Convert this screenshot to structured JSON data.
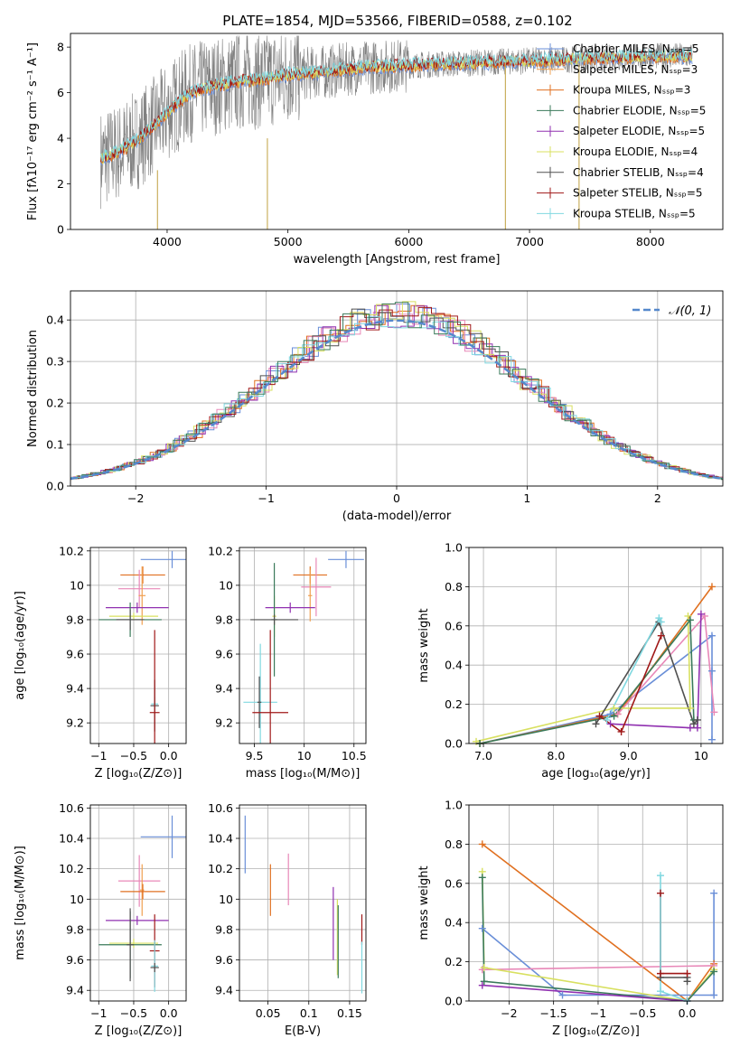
{
  "figure_title": "PLATE=1854, MJD=53566, FIBERID=0588, z=0.102",
  "colors": {
    "Chabrier MILES": "#6a8fd8",
    "Salpeter MILES": "#f0a050",
    "Kroupa MILES": "#e07020",
    "Chabrier ELODIE": "#3a7a5a",
    "Salpeter ELODIE": "#9030b0",
    "Kroupa ELODIE": "#d8e060",
    "Chabrier STELIB": "#505050",
    "Salpeter STELIB": "#a01818",
    "Kroupa STELIB": "#80d8e0",
    "pink": "#e888b8",
    "data": "#808080",
    "normal": "#5588cc"
  },
  "chart_data": [
    {
      "type": "line",
      "id": "spectrum",
      "xlabel": "wavelength [Angstrom, rest frame]",
      "ylabel": "Flux [fλ10⁻¹⁷ erg cm⁻² s⁻¹ A⁻¹]",
      "xlim": [
        3200,
        8600
      ],
      "ylim": [
        0,
        8.6
      ],
      "xticks": [
        4000,
        5000,
        6000,
        7000,
        8000
      ],
      "yticks": [
        0,
        2,
        4,
        6,
        8
      ],
      "legend_position": "upper-right",
      "legend": [
        {
          "label": "Chabrier MILES, Nₛₛₚ=5",
          "color": "Chabrier MILES"
        },
        {
          "label": "Salpeter MILES, Nₛₛₚ=3",
          "color": "Salpeter MILES"
        },
        {
          "label": "Kroupa MILES, Nₛₛₚ=3",
          "color": "Kroupa MILES"
        },
        {
          "label": "Chabrier ELODIE, Nₛₛₚ=5",
          "color": "Chabrier ELODIE"
        },
        {
          "label": "Salpeter ELODIE, Nₛₛₚ=5",
          "color": "Salpeter ELODIE"
        },
        {
          "label": "Kroupa ELODIE, Nₛₛₚ=4",
          "color": "Kroupa ELODIE"
        },
        {
          "label": "Chabrier STELIB, Nₛₛₚ=4",
          "color": "Chabrier STELIB"
        },
        {
          "label": "Salpeter STELIB, Nₛₛₚ=5",
          "color": "Salpeter STELIB"
        },
        {
          "label": "Kroupa STELIB, Nₛₛₚ=5",
          "color": "Kroupa STELIB"
        }
      ],
      "continuum_x": [
        3450,
        3600,
        3750,
        3900,
        4050,
        4200,
        4400,
        4600,
        4800,
        5000,
        5300,
        5600,
        6000,
        6500,
        7000,
        7500,
        8000,
        8350
      ],
      "continuum_y": [
        3.1,
        3.4,
        3.9,
        4.6,
        5.4,
        6.0,
        6.3,
        6.5,
        6.6,
        6.8,
        6.9,
        7.1,
        7.2,
        7.3,
        7.4,
        7.5,
        7.6,
        7.6
      ],
      "spikes": [
        {
          "x": 3920,
          "y0": 0,
          "y1": 2.6
        },
        {
          "x": 4830,
          "y0": 0,
          "y1": 4.0
        },
        {
          "x": 6800,
          "y0": 0,
          "y1": 7.2
        },
        {
          "x": 7410,
          "y0": 0,
          "y1": 7.3
        }
      ]
    },
    {
      "type": "step",
      "id": "residuals",
      "xlabel": "(data-model)/error",
      "ylabel": "Normed distribution",
      "xlim": [
        -2.5,
        2.5
      ],
      "ylim": [
        0,
        0.47
      ],
      "xticks": [
        -2,
        -1,
        0,
        1,
        2
      ],
      "yticks": [
        0.0,
        0.1,
        0.2,
        0.3,
        0.4
      ],
      "grid": true,
      "normal_label": "𝒩(0, 1)",
      "legend_position": "upper-right"
    },
    {
      "type": "errorbar",
      "id": "age_vs_Z",
      "xlabel": "Z [log₁₀(Z/Z⊙)]",
      "ylabel": "age  [log₁₀(age/yr)]",
      "xlim": [
        -1.12,
        0.25
      ],
      "ylim": [
        9.08,
        10.22
      ],
      "xticks": [
        -1.0,
        -0.5,
        0.0
      ],
      "yticks": [
        9.2,
        9.4,
        9.6,
        9.8,
        10.0,
        10.2
      ],
      "grid": true,
      "points": [
        {
          "c": "Chabrier MILES",
          "x": 0.05,
          "y": 10.15,
          "xe": 0.45,
          "ye": 0.05
        },
        {
          "c": "Kroupa MILES",
          "x": -0.37,
          "y": 10.06,
          "xe": 0.32,
          "ye": 0.05
        },
        {
          "c": "pink",
          "x": -0.42,
          "y": 9.98,
          "xe": 0.3,
          "ye": 0.11
        },
        {
          "c": "Salpeter MILES",
          "x": -0.38,
          "y": 9.94,
          "xe": 0.05,
          "ye": 0.17
        },
        {
          "c": "Salpeter ELODIE",
          "x": -0.45,
          "y": 9.87,
          "xe": 0.45,
          "ye": 0.03
        },
        {
          "c": "Kroupa ELODIE",
          "x": -0.5,
          "y": 9.82,
          "xe": 0.35,
          "ye": 0.02
        },
        {
          "c": "Chabrier ELODIE",
          "x": -0.55,
          "y": 9.8,
          "xe": 0.45,
          "ye": 0.1
        },
        {
          "c": "Chabrier STELIB",
          "x": -0.55,
          "y": 9.8,
          "xe": 0.2,
          "ye": 0.06
        },
        {
          "c": "Kroupa STELIB",
          "x": -0.2,
          "y": 9.31,
          "xe": 0.05,
          "ye": 0.04
        },
        {
          "c": "Chabrier STELIB",
          "x": -0.2,
          "y": 9.3,
          "xe": 0.06,
          "ye": 0.15
        },
        {
          "c": "Salpeter STELIB",
          "x": -0.2,
          "y": 9.26,
          "xe": 0.07,
          "ye": 0.48
        }
      ]
    },
    {
      "type": "errorbar",
      "id": "age_vs_mass",
      "xlabel": "mass [log₁₀(M/M⊙)]",
      "ylabel": "",
      "xlim": [
        9.35,
        10.62
      ],
      "ylim": [
        9.08,
        10.22
      ],
      "xticks": [
        9.5,
        10.0,
        10.5
      ],
      "yticks": [
        9.2,
        9.4,
        9.6,
        9.8,
        10.0,
        10.2
      ],
      "grid": true,
      "points": [
        {
          "c": "Chabrier MILES",
          "x": 10.42,
          "y": 10.15,
          "xe": 0.18,
          "ye": 0.05
        },
        {
          "c": "Kroupa MILES",
          "x": 10.06,
          "y": 10.06,
          "xe": 0.17,
          "ye": 0.05
        },
        {
          "c": "pink",
          "x": 10.12,
          "y": 9.99,
          "xe": 0.15,
          "ye": 0.17
        },
        {
          "c": "Salpeter MILES",
          "x": 10.06,
          "y": 9.94,
          "xe": 0.02,
          "ye": 0.15
        },
        {
          "c": "Salpeter ELODIE",
          "x": 9.86,
          "y": 9.87,
          "xe": 0.25,
          "ye": 0.03
        },
        {
          "c": "Kroupa ELODIE",
          "x": 9.7,
          "y": 9.82,
          "xe": 0.02,
          "ye": 0.12
        },
        {
          "c": "Chabrier ELODIE",
          "x": 9.7,
          "y": 9.8,
          "xe": 0.03,
          "ye": 0.33
        },
        {
          "c": "Chabrier STELIB",
          "x": 9.7,
          "y": 9.8,
          "xe": 0.24,
          "ye": 0.03
        },
        {
          "c": "Kroupa STELIB",
          "x": 9.56,
          "y": 9.32,
          "xe": 0.17,
          "ye": 0.34
        },
        {
          "c": "Chabrier STELIB",
          "x": 9.55,
          "y": 9.32,
          "xe": 0.02,
          "ye": 0.15
        },
        {
          "c": "Salpeter STELIB",
          "x": 9.66,
          "y": 9.26,
          "xe": 0.18,
          "ye": 0.48
        }
      ]
    },
    {
      "type": "line",
      "id": "weight_vs_age",
      "xlabel": "age  [log₁₀(age/yr)]",
      "ylabel": "mass weight",
      "xlim": [
        6.8,
        10.3
      ],
      "ylim": [
        0,
        1.0
      ],
      "xticks": [
        7,
        8,
        9,
        10
      ],
      "yticks": [
        0.0,
        0.2,
        0.4,
        0.6,
        0.8,
        1.0
      ],
      "grid": true,
      "series": [
        {
          "c": "Chabrier MILES",
          "x": [
            6.95,
            8.75,
            10.15,
            10.15,
            10.15
          ],
          "y": [
            0.0,
            0.15,
            0.55,
            0.37,
            0.02
          ]
        },
        {
          "c": "Kroupa MILES",
          "x": [
            6.95,
            8.85,
            10.15
          ],
          "y": [
            0.0,
            0.15,
            0.8
          ]
        },
        {
          "c": "pink",
          "x": [
            8.85,
            10.05,
            10.18
          ],
          "y": [
            0.15,
            0.65,
            0.16
          ]
        },
        {
          "c": "Kroupa ELODIE",
          "x": [
            6.9,
            8.8,
            9.85,
            9.82
          ],
          "y": [
            0.01,
            0.18,
            0.18,
            0.65
          ]
        },
        {
          "c": "Chabrier ELODIE",
          "x": [
            6.95,
            8.8,
            9.85,
            9.9
          ],
          "y": [
            0.0,
            0.14,
            0.63,
            0.12
          ]
        },
        {
          "c": "Salpeter ELODIE",
          "x": [
            8.75,
            9.85,
            9.95,
            10.0
          ],
          "y": [
            0.1,
            0.08,
            0.08,
            0.66
          ]
        },
        {
          "c": "Chabrier STELIB",
          "x": [
            8.55,
            9.42,
            9.9,
            9.95
          ],
          "y": [
            0.1,
            0.62,
            0.1,
            0.12
          ]
        },
        {
          "c": "Salpeter STELIB",
          "x": [
            8.6,
            8.9,
            9.45
          ],
          "y": [
            0.14,
            0.06,
            0.55
          ]
        },
        {
          "c": "Kroupa STELIB",
          "x": [
            8.7,
            9.42,
            9.45
          ],
          "y": [
            0.12,
            0.64,
            0.62
          ]
        }
      ]
    },
    {
      "type": "errorbar",
      "id": "mass_vs_Z",
      "xlabel": "Z [log₁₀(Z/Z⊙)]",
      "ylabel": "mass [log₁₀(M/M⊙)]",
      "xlim": [
        -1.12,
        0.25
      ],
      "ylim": [
        9.33,
        10.62
      ],
      "xticks": [
        -1.0,
        -0.5,
        0.0
      ],
      "yticks": [
        9.4,
        9.6,
        9.8,
        10.0,
        10.2,
        10.4,
        10.6
      ],
      "grid": true,
      "points": [
        {
          "c": "Chabrier MILES",
          "x": 0.05,
          "y": 10.41,
          "xe": 0.45,
          "ye": 0.14
        },
        {
          "c": "pink",
          "x": -0.42,
          "y": 10.12,
          "xe": 0.3,
          "ye": 0.17
        },
        {
          "c": "Salpeter MILES",
          "x": -0.38,
          "y": 10.06,
          "xe": 0.03,
          "ye": 0.17
        },
        {
          "c": "Kroupa MILES",
          "x": -0.37,
          "y": 10.05,
          "xe": 0.32,
          "ye": 0.05
        },
        {
          "c": "Salpeter ELODIE",
          "x": -0.45,
          "y": 9.86,
          "xe": 0.45,
          "ye": 0.03
        },
        {
          "c": "Kroupa ELODIE",
          "x": -0.5,
          "y": 9.71,
          "xe": 0.35,
          "ye": 0.03
        },
        {
          "c": "Chabrier ELODIE",
          "x": -0.55,
          "y": 9.7,
          "xe": 0.45,
          "ye": 0.22
        },
        {
          "c": "Chabrier STELIB",
          "x": -0.55,
          "y": 9.7,
          "xe": 0.05,
          "ye": 0.24
        },
        {
          "c": "Salpeter STELIB",
          "x": -0.2,
          "y": 9.66,
          "xe": 0.07,
          "ye": 0.24
        },
        {
          "c": "Kroupa STELIB",
          "x": -0.2,
          "y": 9.56,
          "xe": 0.05,
          "ye": 0.17
        },
        {
          "c": "Chabrier STELIB",
          "x": -0.2,
          "y": 9.55,
          "xe": 0.06,
          "ye": 0.03
        }
      ]
    },
    {
      "type": "errorbar",
      "id": "mass_vs_EBV",
      "xlabel": "E(B-V)",
      "ylabel": "",
      "xlim": [
        0.015,
        0.17
      ],
      "ylim": [
        9.33,
        10.62
      ],
      "xticks": [
        0.05,
        0.1,
        0.15
      ],
      "yticks": [
        9.4,
        9.6,
        9.8,
        10.0,
        10.2,
        10.4,
        10.6
      ],
      "grid": true,
      "points": [
        {
          "c": "Chabrier MILES",
          "x": 0.022,
          "y": 10.36,
          "xe": 0,
          "ye": 0.19
        },
        {
          "c": "Kroupa MILES",
          "x": 0.053,
          "y": 10.06,
          "xe": 0,
          "ye": 0.17
        },
        {
          "c": "pink",
          "x": 0.075,
          "y": 10.13,
          "xe": 0,
          "ye": 0.17
        },
        {
          "c": "Salpeter ELODIE",
          "x": 0.13,
          "y": 9.84,
          "xe": 0,
          "ye": 0.24
        },
        {
          "c": "Kroupa ELODIE",
          "x": 0.135,
          "y": 9.75,
          "xe": 0,
          "ye": 0.25
        },
        {
          "c": "Chabrier ELODIE",
          "x": 0.136,
          "y": 9.72,
          "xe": 0,
          "ye": 0.24
        },
        {
          "c": "Salpeter STELIB",
          "x": 0.165,
          "y": 9.8,
          "xe": 0,
          "ye": 0.1
        },
        {
          "c": "Kroupa STELIB",
          "x": 0.165,
          "y": 9.55,
          "xe": 0,
          "ye": 0.17
        }
      ]
    },
    {
      "type": "line",
      "id": "weight_vs_Z",
      "xlabel": "Z [log₁₀(Z/Z⊙)]",
      "ylabel": "mass weight",
      "xlim": [
        -2.45,
        0.4
      ],
      "ylim": [
        0,
        1.0
      ],
      "xticks": [
        -2.0,
        -1.5,
        -1.0,
        -0.5,
        0.0
      ],
      "yticks": [
        0.0,
        0.2,
        0.4,
        0.6,
        0.8,
        1.0
      ],
      "grid": true,
      "series": [
        {
          "c": "Kroupa MILES",
          "x": [
            -2.3,
            0.0,
            0.3
          ],
          "y": [
            0.8,
            0.0,
            0.19
          ]
        },
        {
          "c": "Chabrier MILES",
          "x": [
            -2.3,
            -1.4,
            0.3,
            0.3
          ],
          "y": [
            0.37,
            0.03,
            0.03,
            0.55
          ]
        },
        {
          "c": "pink",
          "x": [
            -2.3,
            0.3
          ],
          "y": [
            0.16,
            0.18
          ]
        },
        {
          "c": "Kroupa ELODIE",
          "x": [
            -2.3,
            -2.28,
            0.0,
            0.3
          ],
          "y": [
            0.66,
            0.17,
            0.0,
            0.16
          ]
        },
        {
          "c": "Chabrier ELODIE",
          "x": [
            -2.3,
            -2.28,
            0.0,
            0.3
          ],
          "y": [
            0.63,
            0.1,
            0.0,
            0.15
          ]
        },
        {
          "c": "Salpeter ELODIE",
          "x": [
            -2.3,
            0.0
          ],
          "y": [
            0.08,
            0.0
          ]
        },
        {
          "c": "Chabrier STELIB",
          "x": [
            -0.3,
            0.0,
            0.0
          ],
          "y": [
            0.12,
            0.12,
            0.1
          ]
        },
        {
          "c": "Salpeter STELIB",
          "x": [
            -0.3,
            -0.3,
            0.0
          ],
          "y": [
            0.55,
            0.14,
            0.14
          ]
        },
        {
          "c": "Kroupa STELIB",
          "x": [
            -0.3,
            -0.3,
            0.0
          ],
          "y": [
            0.64,
            0.05,
            0.0
          ]
        }
      ]
    }
  ]
}
